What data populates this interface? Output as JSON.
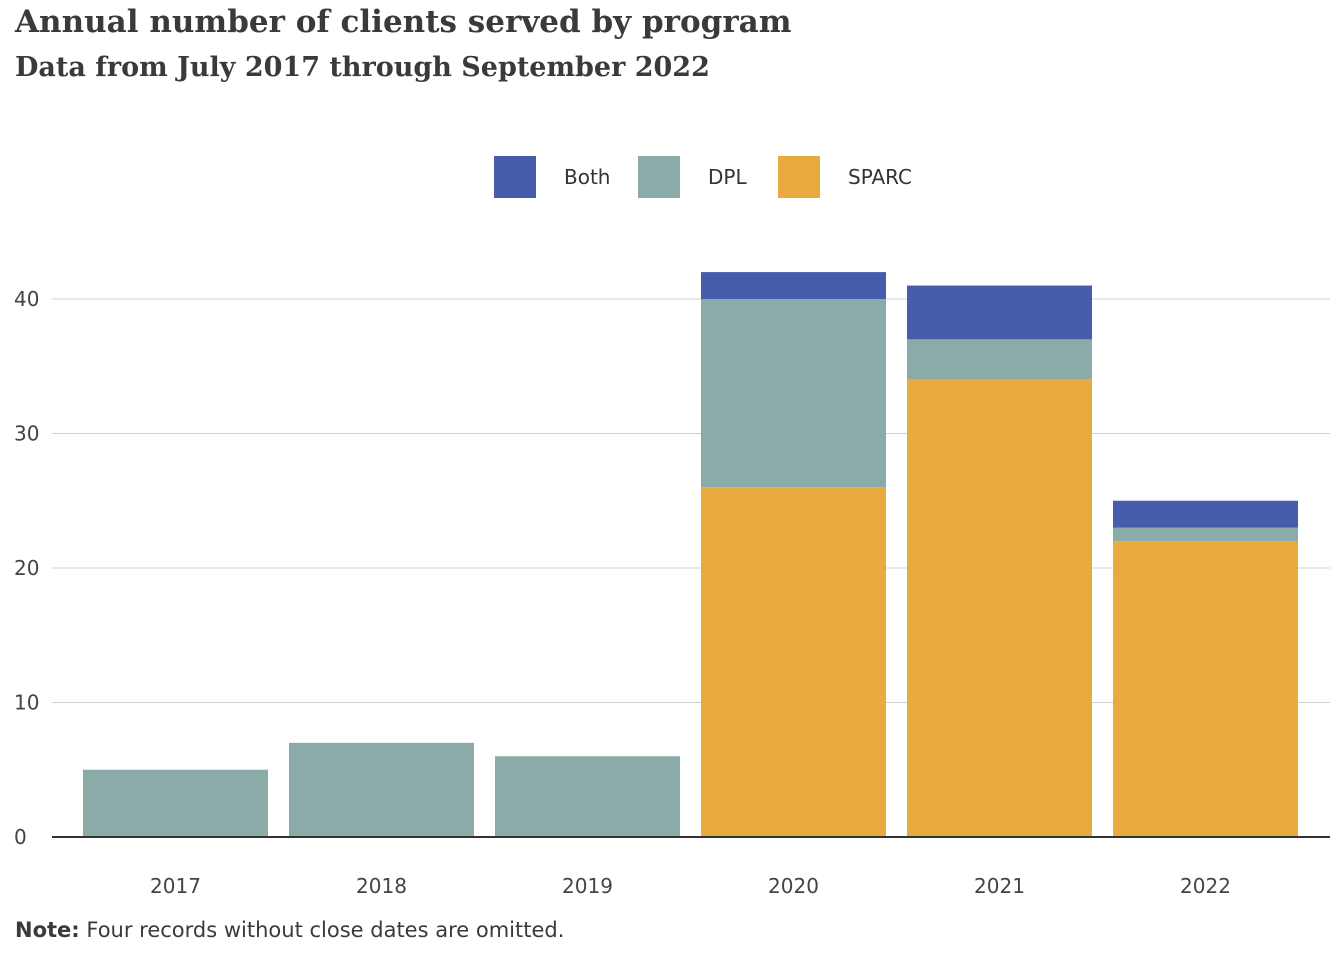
{
  "chart_data": {
    "type": "bar",
    "stacked": true,
    "title": "Annual number of clients served by program",
    "subtitle": "Data from July 2017 through September 2022",
    "xlabel": "",
    "ylabel": "",
    "categories": [
      "2017",
      "2018",
      "2019",
      "2020",
      "2021",
      "2022"
    ],
    "series": [
      {
        "name": "SPARC",
        "color": "#e9aa40",
        "values": [
          0,
          0,
          0,
          26,
          34,
          22
        ]
      },
      {
        "name": "DPL",
        "color": "#8aaba7",
        "values": [
          5,
          7,
          6,
          14,
          3,
          1
        ]
      },
      {
        "name": "Both",
        "color": "#455dab",
        "values": [
          0,
          0,
          0,
          2,
          4,
          2
        ]
      }
    ],
    "legend_order": [
      "Both",
      "DPL",
      "SPARC"
    ],
    "ylim": [
      0,
      42
    ],
    "yticks": [
      0,
      10,
      20,
      30,
      40
    ],
    "grid": true,
    "legend_position": "top-center"
  },
  "note": {
    "label": "Note:",
    "text": " Four records without close dates are omitted."
  },
  "colors": {
    "gridline": "#d0d0d0",
    "axis": "#333333",
    "text": "#333333"
  }
}
